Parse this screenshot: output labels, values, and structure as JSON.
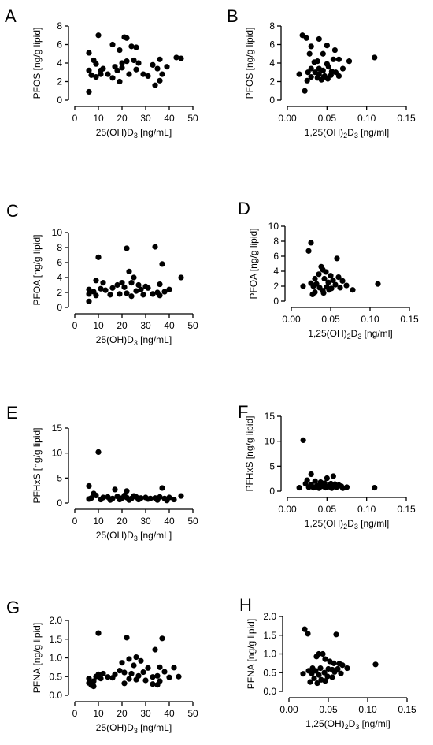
{
  "chart_data": [
    {
      "panel": "A",
      "type": "scatter",
      "xlabel_base": "25(OH)D",
      "xlabel_sub": "3",
      "xlabel_tail": " [ng/mL]",
      "ylabel": "PFOS [ng/g lipid]",
      "xlim": [
        0,
        50
      ],
      "ylim": [
        0,
        8
      ],
      "xticks": [
        0,
        10,
        20,
        30,
        40,
        50
      ],
      "yticks": [
        0,
        2,
        4,
        6,
        8
      ],
      "xtick_labels": [
        "0",
        "10",
        "20",
        "30",
        "40",
        "50"
      ],
      "ytick_labels": [
        "0",
        "2",
        "4",
        "6",
        "8"
      ],
      "points": [
        [
          10,
          7.0
        ],
        [
          21,
          6.8
        ],
        [
          22,
          6.7
        ],
        [
          16,
          6.0
        ],
        [
          24,
          5.8
        ],
        [
          26,
          5.7
        ],
        [
          6,
          5.1
        ],
        [
          19,
          5.4
        ],
        [
          8,
          4.3
        ],
        [
          9,
          3.9
        ],
        [
          12,
          3.4
        ],
        [
          11,
          3.2
        ],
        [
          20,
          4.0
        ],
        [
          22,
          4.2
        ],
        [
          25,
          4.3
        ],
        [
          27,
          4.0
        ],
        [
          36,
          4.4
        ],
        [
          43,
          4.6
        ],
        [
          45,
          4.5
        ],
        [
          6,
          3.2
        ],
        [
          7,
          2.7
        ],
        [
          9,
          2.5
        ],
        [
          11,
          2.8
        ],
        [
          14,
          2.8
        ],
        [
          17,
          3.6
        ],
        [
          18,
          3.2
        ],
        [
          20,
          3.5
        ],
        [
          23,
          2.8
        ],
        [
          26,
          3.3
        ],
        [
          29,
          2.8
        ],
        [
          31,
          2.6
        ],
        [
          33,
          3.8
        ],
        [
          35,
          3.4
        ],
        [
          37,
          2.8
        ],
        [
          39,
          3.6
        ],
        [
          16,
          2.4
        ],
        [
          19,
          2.0
        ],
        [
          34,
          1.6
        ],
        [
          36,
          2.1
        ],
        [
          6,
          0.9
        ]
      ]
    },
    {
      "panel": "B",
      "type": "scatter",
      "xlabel_base": "1,25(OH)",
      "xlabel_sub": "2",
      "xlabel_tail": "D",
      "xlabel_sub2": "3",
      "xlabel_tail2": " [ng/ml]",
      "ylabel": "PFOS [ng/g lipid]",
      "xlim": [
        0,
        0.15
      ],
      "ylim": [
        0,
        8
      ],
      "xticks": [
        0,
        0.05,
        0.1,
        0.15
      ],
      "yticks": [
        0,
        2,
        4,
        6,
        8
      ],
      "xtick_labels": [
        "0.00",
        "0.05",
        "0.10",
        "0.15"
      ],
      "ytick_labels": [
        "0",
        "2",
        "4",
        "6",
        "8"
      ],
      "points": [
        [
          0.019,
          7.0
        ],
        [
          0.024,
          6.7
        ],
        [
          0.04,
          6.6
        ],
        [
          0.05,
          5.9
        ],
        [
          0.03,
          5.8
        ],
        [
          0.06,
          5.4
        ],
        [
          0.028,
          5.0
        ],
        [
          0.045,
          5.0
        ],
        [
          0.038,
          4.2
        ],
        [
          0.058,
          4.4
        ],
        [
          0.065,
          4.4
        ],
        [
          0.11,
          4.6
        ],
        [
          0.078,
          4.2
        ],
        [
          0.034,
          4.1
        ],
        [
          0.05,
          3.9
        ],
        [
          0.052,
          3.6
        ],
        [
          0.03,
          3.4
        ],
        [
          0.04,
          3.4
        ],
        [
          0.045,
          3.2
        ],
        [
          0.061,
          3.0
        ],
        [
          0.07,
          3.4
        ],
        [
          0.015,
          2.8
        ],
        [
          0.026,
          3.0
        ],
        [
          0.035,
          3.0
        ],
        [
          0.04,
          2.8
        ],
        [
          0.047,
          2.6
        ],
        [
          0.055,
          2.7
        ],
        [
          0.03,
          2.5
        ],
        [
          0.038,
          2.4
        ],
        [
          0.043,
          2.2
        ],
        [
          0.051,
          2.3
        ],
        [
          0.056,
          3.1
        ],
        [
          0.065,
          2.6
        ],
        [
          0.025,
          2.1
        ],
        [
          0.046,
          2.5
        ],
        [
          0.022,
          1.0
        ]
      ]
    },
    {
      "panel": "C",
      "type": "scatter",
      "xlabel_base": "25(OH)D",
      "xlabel_sub": "3",
      "xlabel_tail": " [ng/mL]",
      "ylabel": "PFOA [ng/g lipid]",
      "xlim": [
        0,
        50
      ],
      "ylim": [
        0,
        10
      ],
      "xticks": [
        0,
        10,
        20,
        30,
        40,
        50
      ],
      "yticks": [
        0,
        2,
        4,
        6,
        8,
        10
      ],
      "xtick_labels": [
        "0",
        "10",
        "20",
        "30",
        "40",
        "50"
      ],
      "ytick_labels": [
        "0",
        "2",
        "4",
        "6",
        "8",
        "10"
      ],
      "points": [
        [
          10,
          6.7
        ],
        [
          22,
          7.9
        ],
        [
          34,
          8.1
        ],
        [
          37,
          5.8
        ],
        [
          23,
          4.8
        ],
        [
          25,
          4.0
        ],
        [
          45,
          4.0
        ],
        [
          9,
          3.6
        ],
        [
          12,
          3.3
        ],
        [
          20,
          3.3
        ],
        [
          24,
          3.3
        ],
        [
          27,
          3.0
        ],
        [
          30,
          2.8
        ],
        [
          36,
          3.1
        ],
        [
          6,
          2.4
        ],
        [
          8,
          2.1
        ],
        [
          11,
          2.5
        ],
        [
          13,
          2.3
        ],
        [
          16,
          2.6
        ],
        [
          18,
          3.0
        ],
        [
          21,
          2.7
        ],
        [
          26,
          2.2
        ],
        [
          28,
          2.4
        ],
        [
          31,
          2.6
        ],
        [
          35,
          2.0
        ],
        [
          38,
          2.1
        ],
        [
          40,
          2.4
        ],
        [
          6,
          1.8
        ],
        [
          9,
          1.6
        ],
        [
          15,
          1.7
        ],
        [
          19,
          1.8
        ],
        [
          22,
          1.9
        ],
        [
          29,
          1.7
        ],
        [
          33,
          1.8
        ],
        [
          36,
          1.6
        ],
        [
          24,
          1.5
        ],
        [
          6,
          0.8
        ]
      ]
    },
    {
      "panel": "D",
      "type": "scatter",
      "xlabel_base": "1,25(OH)",
      "xlabel_sub": "2",
      "xlabel_tail": "D",
      "xlabel_sub2": "3",
      "xlabel_tail2": " [ng/ml]",
      "ylabel": "PFOA [ng/g lipid]",
      "xlim": [
        0,
        0.15
      ],
      "ylim": [
        0,
        10
      ],
      "xticks": [
        0,
        0.05,
        0.1,
        0.15
      ],
      "yticks": [
        0,
        2,
        4,
        6,
        8,
        10
      ],
      "xtick_labels": [
        "0.00",
        "0.05",
        "0.10",
        "0.15"
      ],
      "ytick_labels": [
        "0",
        "2",
        "4",
        "6",
        "8",
        "10"
      ],
      "points": [
        [
          0.025,
          7.8
        ],
        [
          0.022,
          6.7
        ],
        [
          0.058,
          5.7
        ],
        [
          0.038,
          4.6
        ],
        [
          0.04,
          4.2
        ],
        [
          0.044,
          3.9
        ],
        [
          0.035,
          3.6
        ],
        [
          0.05,
          3.4
        ],
        [
          0.06,
          3.2
        ],
        [
          0.03,
          3.0
        ],
        [
          0.042,
          3.0
        ],
        [
          0.053,
          2.8
        ],
        [
          0.065,
          2.7
        ],
        [
          0.025,
          2.4
        ],
        [
          0.032,
          2.3
        ],
        [
          0.047,
          2.5
        ],
        [
          0.056,
          2.2
        ],
        [
          0.07,
          2.1
        ],
        [
          0.11,
          2.3
        ],
        [
          0.015,
          2.0
        ],
        [
          0.028,
          2.0
        ],
        [
          0.036,
          1.8
        ],
        [
          0.045,
          1.9
        ],
        [
          0.051,
          1.7
        ],
        [
          0.062,
          1.8
        ],
        [
          0.04,
          1.4
        ],
        [
          0.048,
          1.5
        ],
        [
          0.078,
          1.5
        ],
        [
          0.03,
          1.2
        ],
        [
          0.041,
          1.1
        ],
        [
          0.027,
          0.9
        ]
      ]
    },
    {
      "panel": "E",
      "type": "scatter",
      "xlabel_base": "25(OH)D",
      "xlabel_sub": "3",
      "xlabel_tail": " [ng/mL]",
      "ylabel": "PFHxS [ng/g lipid]",
      "xlim": [
        0,
        50
      ],
      "ylim": [
        0,
        15
      ],
      "xticks": [
        0,
        10,
        20,
        30,
        40,
        50
      ],
      "yticks": [
        0,
        5,
        10,
        15
      ],
      "xtick_labels": [
        "0",
        "10",
        "20",
        "30",
        "40",
        "50"
      ],
      "ytick_labels": [
        "0",
        "5",
        "10",
        "15"
      ],
      "points": [
        [
          10,
          10.2
        ],
        [
          6,
          3.4
        ],
        [
          37,
          3.0
        ],
        [
          17,
          2.7
        ],
        [
          22,
          2.4
        ],
        [
          8,
          1.9
        ],
        [
          9,
          1.5
        ],
        [
          12,
          1.1
        ],
        [
          14,
          1.2
        ],
        [
          16,
          0.9
        ],
        [
          18,
          1.3
        ],
        [
          20,
          1.0
        ],
        [
          22,
          1.1
        ],
        [
          24,
          0.9
        ],
        [
          26,
          1.2
        ],
        [
          28,
          1.0
        ],
        [
          30,
          1.1
        ],
        [
          32,
          0.9
        ],
        [
          34,
          1.0
        ],
        [
          36,
          1.2
        ],
        [
          38,
          0.9
        ],
        [
          40,
          1.1
        ],
        [
          42,
          0.7
        ],
        [
          45,
          1.4
        ],
        [
          6,
          0.8
        ],
        [
          7,
          1.0
        ],
        [
          11,
          0.7
        ],
        [
          15,
          0.6
        ],
        [
          19,
          0.7
        ],
        [
          23,
          0.6
        ],
        [
          27,
          0.7
        ],
        [
          31,
          0.8
        ],
        [
          35,
          0.6
        ],
        [
          39,
          0.5
        ],
        [
          21,
          1.5
        ],
        [
          25,
          1.4
        ]
      ]
    },
    {
      "panel": "F",
      "type": "scatter",
      "xlabel_base": "1,25(OH)",
      "xlabel_sub": "2",
      "xlabel_tail": "D",
      "xlabel_sub2": "3",
      "xlabel_tail2": " [ng/ml]",
      "ylabel": "PFHxS [ng/g lipid]",
      "xlim": [
        0,
        0.15
      ],
      "ylim": [
        0,
        15
      ],
      "xticks": [
        0,
        0.05,
        0.1,
        0.15
      ],
      "yticks": [
        0,
        5,
        10,
        15
      ],
      "xtick_labels": [
        "0.00",
        "0.05",
        "0.10",
        "0.15"
      ],
      "ytick_labels": [
        "0",
        "5",
        "10",
        "15"
      ],
      "points": [
        [
          0.02,
          10.2
        ],
        [
          0.03,
          3.4
        ],
        [
          0.058,
          3.0
        ],
        [
          0.05,
          2.6
        ],
        [
          0.025,
          2.2
        ],
        [
          0.035,
          2.0
        ],
        [
          0.042,
          1.8
        ],
        [
          0.047,
          1.6
        ],
        [
          0.055,
          1.5
        ],
        [
          0.06,
          1.4
        ],
        [
          0.065,
          1.2
        ],
        [
          0.03,
          1.3
        ],
        [
          0.038,
          1.1
        ],
        [
          0.044,
          1.0
        ],
        [
          0.052,
          0.9
        ],
        [
          0.068,
          1.0
        ],
        [
          0.075,
          0.8
        ],
        [
          0.11,
          0.7
        ],
        [
          0.015,
          0.7
        ],
        [
          0.027,
          0.8
        ],
        [
          0.033,
          0.7
        ],
        [
          0.04,
          0.6
        ],
        [
          0.048,
          0.7
        ],
        [
          0.056,
          0.6
        ],
        [
          0.062,
          0.8
        ],
        [
          0.036,
          0.9
        ],
        [
          0.023,
          1.5
        ],
        [
          0.045,
          1.3
        ],
        [
          0.053,
          1.1
        ],
        [
          0.07,
          0.6
        ]
      ]
    },
    {
      "panel": "G",
      "type": "scatter",
      "xlabel_base": "25(OH)D",
      "xlabel_sub": "3",
      "xlabel_tail": " [ng/mL]",
      "ylabel": "PFNA [ng/g lipid]",
      "xlim": [
        0,
        50
      ],
      "ylim": [
        0,
        2
      ],
      "xticks": [
        0,
        10,
        20,
        30,
        40,
        50
      ],
      "yticks": [
        0,
        0.5,
        1,
        1.5,
        2
      ],
      "xtick_labels": [
        "0",
        "10",
        "20",
        "30",
        "40",
        "50"
      ],
      "ytick_labels": [
        "0.0",
        "0.5",
        "1.0",
        "1.5",
        "2.0"
      ],
      "points": [
        [
          10,
          1.66
        ],
        [
          22,
          1.54
        ],
        [
          37,
          1.52
        ],
        [
          34,
          1.22
        ],
        [
          26,
          1.02
        ],
        [
          23,
          0.97
        ],
        [
          28,
          0.92
        ],
        [
          20,
          0.87
        ],
        [
          25,
          0.8
        ],
        [
          31,
          0.73
        ],
        [
          36,
          0.75
        ],
        [
          42,
          0.74
        ],
        [
          19,
          0.66
        ],
        [
          21,
          0.61
        ],
        [
          24,
          0.58
        ],
        [
          29,
          0.62
        ],
        [
          38,
          0.63
        ],
        [
          44,
          0.5
        ],
        [
          10,
          0.56
        ],
        [
          12,
          0.58
        ],
        [
          14,
          0.49
        ],
        [
          17,
          0.56
        ],
        [
          27,
          0.52
        ],
        [
          33,
          0.49
        ],
        [
          35,
          0.52
        ],
        [
          40,
          0.48
        ],
        [
          6,
          0.45
        ],
        [
          8,
          0.38
        ],
        [
          9,
          0.5
        ],
        [
          11,
          0.45
        ],
        [
          16,
          0.47
        ],
        [
          23,
          0.44
        ],
        [
          26,
          0.42
        ],
        [
          30,
          0.4
        ],
        [
          36,
          0.38
        ],
        [
          6,
          0.33
        ],
        [
          7,
          0.27
        ],
        [
          8,
          0.24
        ],
        [
          21,
          0.32
        ],
        [
          33,
          0.3
        ],
        [
          35,
          0.28
        ]
      ]
    },
    {
      "panel": "H",
      "type": "scatter",
      "xlabel_base": "1,25(OH)",
      "xlabel_sub": "2",
      "xlabel_tail": "D",
      "xlabel_sub2": "3",
      "xlabel_tail2": " [ng/ml]",
      "ylabel": "PFNA [ng/g lipid]",
      "xlim": [
        0,
        0.15
      ],
      "ylim": [
        0,
        2
      ],
      "xticks": [
        0,
        0.05,
        0.1,
        0.15
      ],
      "yticks": [
        0,
        0.5,
        1,
        1.5,
        2
      ],
      "xtick_labels": [
        "0.00",
        "0.05",
        "0.10",
        "0.15"
      ],
      "ytick_labels": [
        "0.0",
        "0.5",
        "1.0",
        "1.5",
        "2.0"
      ],
      "points": [
        [
          0.02,
          1.66
        ],
        [
          0.024,
          1.54
        ],
        [
          0.06,
          1.52
        ],
        [
          0.038,
          1.0
        ],
        [
          0.043,
          1.0
        ],
        [
          0.035,
          0.93
        ],
        [
          0.046,
          0.86
        ],
        [
          0.052,
          0.8
        ],
        [
          0.057,
          0.75
        ],
        [
          0.064,
          0.74
        ],
        [
          0.11,
          0.72
        ],
        [
          0.068,
          0.7
        ],
        [
          0.03,
          0.62
        ],
        [
          0.04,
          0.62
        ],
        [
          0.05,
          0.6
        ],
        [
          0.055,
          0.58
        ],
        [
          0.062,
          0.6
        ],
        [
          0.074,
          0.62
        ],
        [
          0.025,
          0.55
        ],
        [
          0.034,
          0.55
        ],
        [
          0.045,
          0.5
        ],
        [
          0.058,
          0.52
        ],
        [
          0.066,
          0.48
        ],
        [
          0.018,
          0.47
        ],
        [
          0.029,
          0.48
        ],
        [
          0.038,
          0.44
        ],
        [
          0.049,
          0.4
        ],
        [
          0.055,
          0.38
        ],
        [
          0.032,
          0.35
        ],
        [
          0.041,
          0.31
        ],
        [
          0.046,
          0.28
        ],
        [
          0.027,
          0.25
        ],
        [
          0.036,
          0.22
        ]
      ]
    }
  ]
}
